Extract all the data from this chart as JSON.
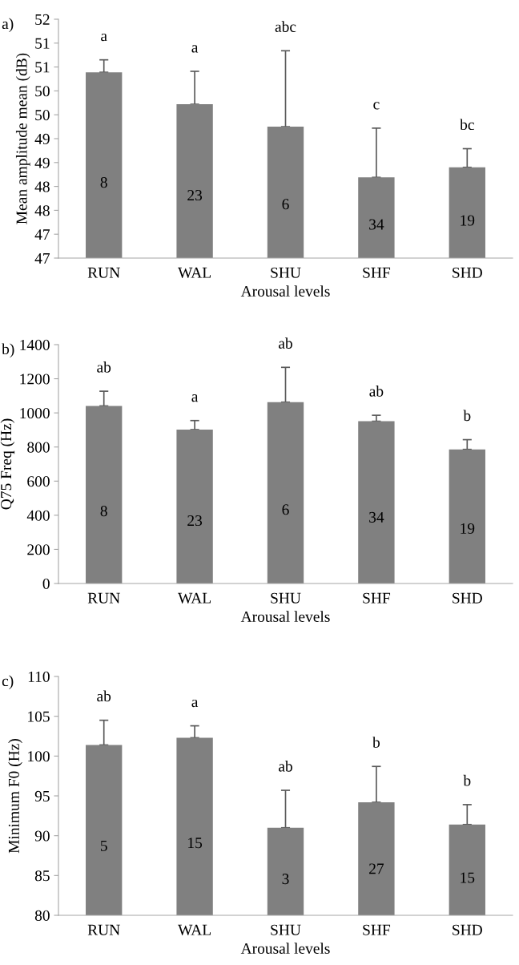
{
  "chart_data": [
    {
      "type": "bar",
      "title": "a)",
      "xlabel": "Arousal levels",
      "ylabel": "Mean amplitude mean (dB)",
      "categories": [
        "RUN",
        "WAL",
        "SHU",
        "SHF",
        "SHD"
      ],
      "values": [
        50.89,
        50.22,
        49.75,
        48.69,
        48.9
      ],
      "color": "#808080",
      "errors": [
        [
          50.89,
          51.15
        ],
        [
          50.22,
          50.91
        ],
        [
          49.75,
          51.34
        ],
        [
          48.69,
          49.72
        ],
        [
          48.9,
          49.29
        ]
      ],
      "ylim": [
        47,
        52
      ],
      "yticks": [
        47,
        {
          "value": 47.5,
          "label": "47"
        },
        48,
        {
          "value": 48.5,
          "label": "48"
        },
        49,
        {
          "value": 49.5,
          "label": "49"
        },
        50,
        {
          "value": 50.5,
          "label": "50"
        },
        51,
        {
          "value": 51.5,
          "label": "51"
        },
        52
      ],
      "annotations": [
        "a",
        "a",
        "abc",
        "c",
        "bc",
        "8",
        "23",
        "6",
        "34",
        "19"
      ]
    },
    {
      "type": "bar",
      "title": "b)",
      "xlabel": "Arousal levels",
      "ylabel": "Q75 Freq (Hz)",
      "categories": [
        "RUN",
        "WAL",
        "SHU",
        "SHF",
        "SHD"
      ],
      "values": [
        1041,
        902,
        1063,
        951,
        786
      ],
      "color": "#808080",
      "errors": [
        [
          1041,
          1127
        ],
        [
          902,
          955
        ],
        [
          1063,
          1267
        ],
        [
          951,
          986
        ],
        [
          786,
          843
        ]
      ],
      "ylim": [
        0,
        1400
      ],
      "yticks": [
        0,
        200,
        400,
        600,
        800,
        1000,
        1200,
        1400
      ],
      "annotations": [
        "ab",
        "a",
        "ab",
        "ab",
        "b",
        "8",
        "23",
        "6",
        "34",
        "19"
      ]
    },
    {
      "type": "bar",
      "title": "c)",
      "xlabel": "Arousal levels",
      "ylabel": "Minimum F0 (Hz)",
      "categories": [
        "RUN",
        "WAL",
        "SHU",
        "SHF",
        "SHD"
      ],
      "values": [
        101.4,
        102.3,
        91.0,
        94.2,
        91.4
      ],
      "color": "#808080",
      "errors": [
        [
          101.4,
          104.5
        ],
        [
          102.3,
          103.8
        ],
        [
          91.0,
          95.7
        ],
        [
          94.2,
          98.7
        ],
        [
          91.4,
          93.9
        ]
      ],
      "ylim": [
        80,
        110
      ],
      "yticks": [
        80,
        85,
        90,
        95,
        100,
        105,
        110
      ],
      "annotations": [
        "ab",
        "a",
        "ab",
        "b",
        "b",
        "5",
        "15",
        "3",
        "27",
        "15"
      ]
    }
  ]
}
